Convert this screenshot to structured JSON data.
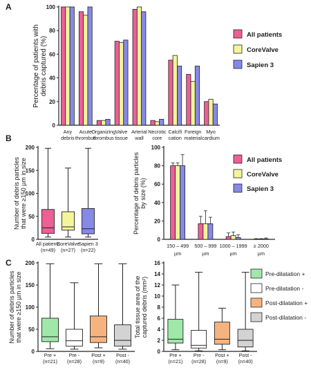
{
  "panel_labels": [
    "A",
    "B",
    "C"
  ],
  "colors": {
    "all_patients": "#ee5f96",
    "corevalve": "#f4f59a",
    "sapien3": "#8789e6",
    "pre_plus": "#9fe8a8",
    "pre_minus": "#ffffff",
    "post_plus": "#f5b47f",
    "post_minus": "#d3d3d3",
    "stroke": "#222222"
  },
  "chart_data": [
    {
      "panel": "A",
      "type": "bar",
      "ylabel": "Percentage of patients with debris captured (%)",
      "ylim": [
        0,
        100
      ],
      "yticks": [
        0,
        20,
        40,
        60,
        80,
        100
      ],
      "categories": [
        [
          "Any",
          "debris"
        ],
        [
          "Acute",
          "thrombus"
        ],
        [
          "Organizing",
          "thrombus"
        ],
        [
          "Valve",
          "tissue"
        ],
        [
          "Arterial",
          "wall"
        ],
        [
          "Necrotic",
          "core"
        ],
        [
          "Calcifi",
          "cation"
        ],
        [
          "Foreign",
          "material"
        ],
        [
          "Myo",
          "cardium"
        ]
      ],
      "series": [
        {
          "name": "All patients",
          "color_key": "all_patients",
          "values": [
            100,
            96,
            4,
            71,
            98,
            4,
            55,
            43,
            20
          ]
        },
        {
          "name": "CoreValve",
          "color_key": "corevalve",
          "values": [
            100,
            93,
            4,
            70,
            100,
            3,
            59,
            37,
            22
          ]
        },
        {
          "name": "Sapien 3",
          "color_key": "sapien3",
          "values": [
            100,
            100,
            5,
            72,
            96,
            5,
            50,
            50,
            18
          ]
        }
      ],
      "legend": "right"
    },
    {
      "panel": "B-left",
      "type": "boxplot",
      "ylabel": "Number of debris particles that were ≥150 µm in size",
      "ylim": [
        0,
        200
      ],
      "yticks": [
        0,
        50,
        100,
        150,
        200
      ],
      "categories": [
        [
          "All patients",
          "(n=49)"
        ],
        [
          "CoreValve",
          "(n=27)"
        ],
        [
          "Sapien 3",
          "(n=22)"
        ]
      ],
      "boxes": [
        {
          "min": 5,
          "q1": 13,
          "median": 25,
          "q3": 65,
          "max": 198,
          "color_key": "all_patients"
        },
        {
          "min": 5,
          "q1": 20,
          "median": 27,
          "q3": 60,
          "max": 155,
          "color_key": "corevalve"
        },
        {
          "min": 5,
          "q1": 12,
          "median": 23,
          "q3": 67,
          "max": 198,
          "color_key": "sapien3"
        }
      ]
    },
    {
      "panel": "B-right",
      "type": "bar",
      "ylabel": "Percentage of debris particles by size (%)",
      "ylim": [
        0,
        100
      ],
      "yticks": [
        0,
        20,
        40,
        60,
        80,
        100
      ],
      "categories": [
        [
          "150 – 499",
          "µm"
        ],
        [
          "500 – 999",
          "µm"
        ],
        [
          "1000 – 1999",
          "µm"
        ],
        [
          "≥ 2000",
          "µm"
        ]
      ],
      "series": [
        {
          "name": "All patients",
          "color_key": "all_patients",
          "values": [
            80,
            17,
            3,
            0.3
          ],
          "errors": [
            3,
            8,
            4,
            0.5
          ]
        },
        {
          "name": "CoreValve",
          "color_key": "corevalve",
          "values": [
            80,
            17,
            4,
            0.3
          ],
          "errors": [
            3,
            14,
            4,
            0.5
          ]
        },
        {
          "name": "Sapien 3",
          "color_key": "sapien3",
          "values": [
            80,
            17,
            2,
            0.5
          ],
          "errors": [
            12,
            7,
            3,
            1
          ]
        }
      ],
      "legend": "top-right"
    },
    {
      "panel": "C-left",
      "type": "boxplot",
      "ylabel": "Number of debris particles that were ≥150 µm in size",
      "ylim": [
        0,
        200
      ],
      "yticks": [
        0,
        50,
        100,
        150,
        200
      ],
      "categories": [
        [
          "Pre +",
          "(n=21)"
        ],
        [
          "Pre -",
          "(n=28)"
        ],
        [
          "Post +",
          "(n=9)"
        ],
        [
          "Post -",
          "(n=40)"
        ]
      ],
      "boxes": [
        {
          "min": 6,
          "q1": 22,
          "median": 33,
          "q3": 75,
          "max": 198,
          "color_key": "pre_plus"
        },
        {
          "min": 5,
          "q1": 12,
          "median": 24,
          "q3": 50,
          "max": 155,
          "color_key": "pre_minus"
        },
        {
          "min": 8,
          "q1": 20,
          "median": 33,
          "q3": 80,
          "max": 198,
          "color_key": "post_plus"
        },
        {
          "min": 5,
          "q1": 12,
          "median": 25,
          "q3": 60,
          "max": 198,
          "color_key": "post_minus"
        }
      ]
    },
    {
      "panel": "C-right",
      "type": "boxplot",
      "ylabel": "Total tissue area of the captured debris (mm²)",
      "ylim": [
        0,
        16
      ],
      "yticks": [
        0,
        2,
        4,
        6,
        8,
        10,
        12,
        14,
        16
      ],
      "categories": [
        [
          "Pre +",
          "(n=21)"
        ],
        [
          "Pre -",
          "(n=28)"
        ],
        [
          "Post +",
          "(n=9)"
        ],
        [
          "Post -",
          "(n=40)"
        ]
      ],
      "boxes": [
        {
          "min": 0.3,
          "q1": 1.5,
          "median": 2.2,
          "q3": 5.8,
          "max": 12,
          "color_key": "pre_plus"
        },
        {
          "min": 0.1,
          "q1": 0.6,
          "median": 1.1,
          "q3": 3.8,
          "max": 14.3,
          "color_key": "pre_minus"
        },
        {
          "min": 0.3,
          "q1": 1.3,
          "median": 2.2,
          "q3": 5.3,
          "max": 7.8,
          "color_key": "post_plus"
        },
        {
          "min": 0.1,
          "q1": 0.8,
          "median": 2.0,
          "q3": 4.0,
          "max": 14.3,
          "color_key": "post_minus"
        }
      ]
    }
  ],
  "legend_c": [
    {
      "name": "Pre-dilatation +",
      "color_key": "pre_plus"
    },
    {
      "name": "Pre-dilatation -",
      "color_key": "pre_minus"
    },
    {
      "name": "Post-dilatation +",
      "color_key": "post_plus"
    },
    {
      "name": "Post-dilatation -",
      "color_key": "post_minus"
    }
  ]
}
